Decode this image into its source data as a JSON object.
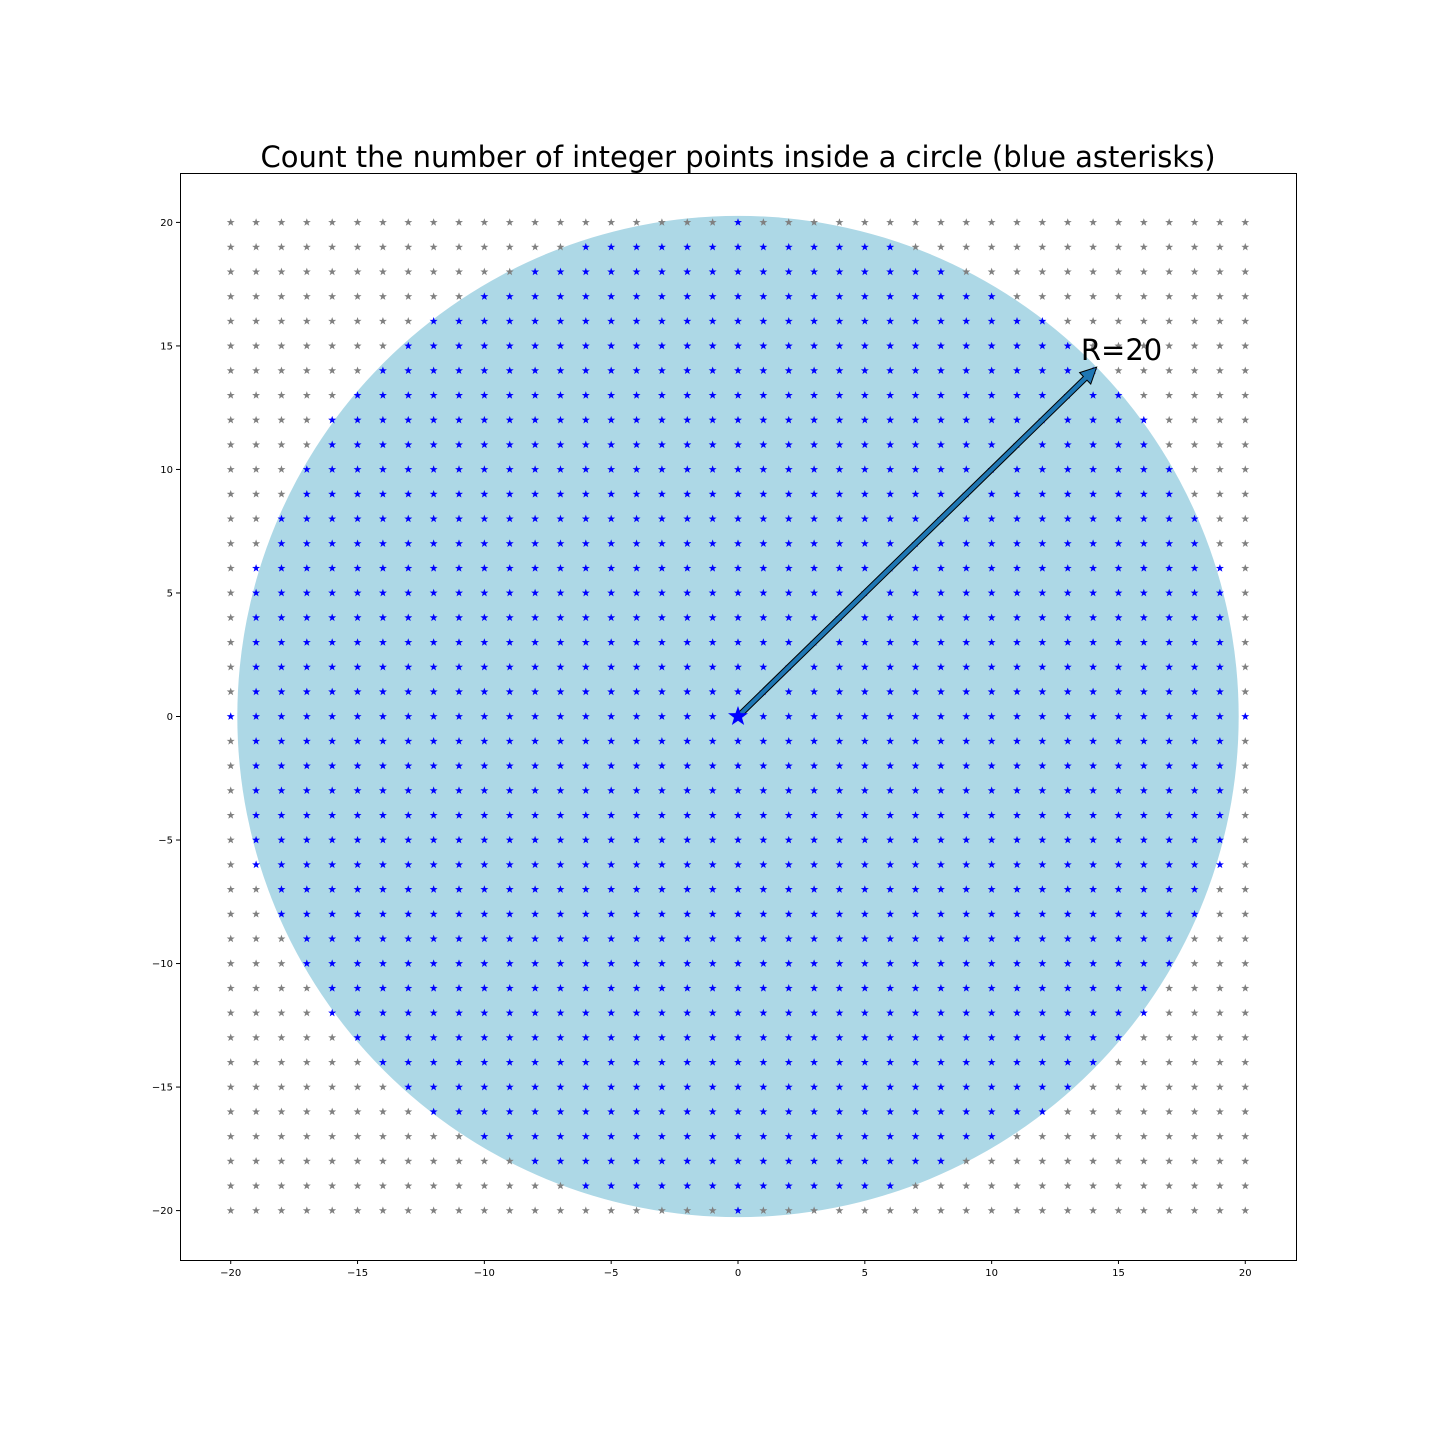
{
  "chart_data": {
    "type": "scatter",
    "title": "Count the number of integer points inside a circle (blue asterisks)",
    "xlabel": "",
    "ylabel": "",
    "xlim": [
      -22,
      22
    ],
    "ylim": [
      -22,
      22
    ],
    "xticks": [
      -20,
      -15,
      -10,
      -5,
      0,
      5,
      10,
      15,
      20
    ],
    "yticks": [
      -20,
      -15,
      -10,
      -5,
      0,
      5,
      10,
      15,
      20
    ],
    "xtick_labels": [
      "−20",
      "−15",
      "−10",
      "−5",
      "0",
      "5",
      "10",
      "15",
      "20"
    ],
    "ytick_labels": [
      "−20",
      "−15",
      "−10",
      "−5",
      "0",
      "5",
      "10",
      "15",
      "20"
    ],
    "grid": false,
    "circle": {
      "center": [
        0,
        0
      ],
      "radius": 20,
      "fill_color": "#add8e6"
    },
    "lattice": {
      "x_range": [
        -20,
        20
      ],
      "y_range": [
        -20,
        20
      ],
      "step": 1
    },
    "series": [
      {
        "marker": "*",
        "color": "#0000ff",
        "rule": "x^2 + y^2 <= 400"
      },
      {
        "marker": "*",
        "color": "#808080",
        "rule": "x^2 + y^2 > 400"
      }
    ],
    "center_marker": {
      "x": 0,
      "y": 0,
      "marker": "*",
      "color": "#0000ff"
    },
    "annotation": {
      "text": "R=20",
      "arrow_from": [
        0,
        0
      ],
      "arrow_to": [
        14.14,
        14.14
      ],
      "arrow_color": "#1f77b4"
    }
  }
}
